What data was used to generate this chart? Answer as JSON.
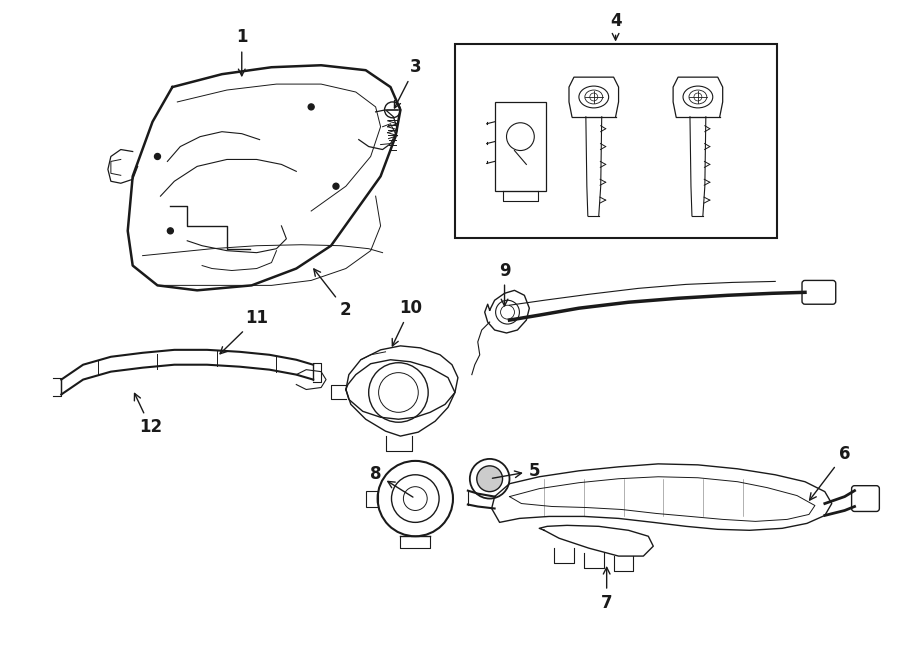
{
  "bg_color": "#ffffff",
  "line_color": "#1a1a1a",
  "lw": 1.0,
  "fig_width": 9.0,
  "fig_height": 6.61,
  "dpi": 100
}
